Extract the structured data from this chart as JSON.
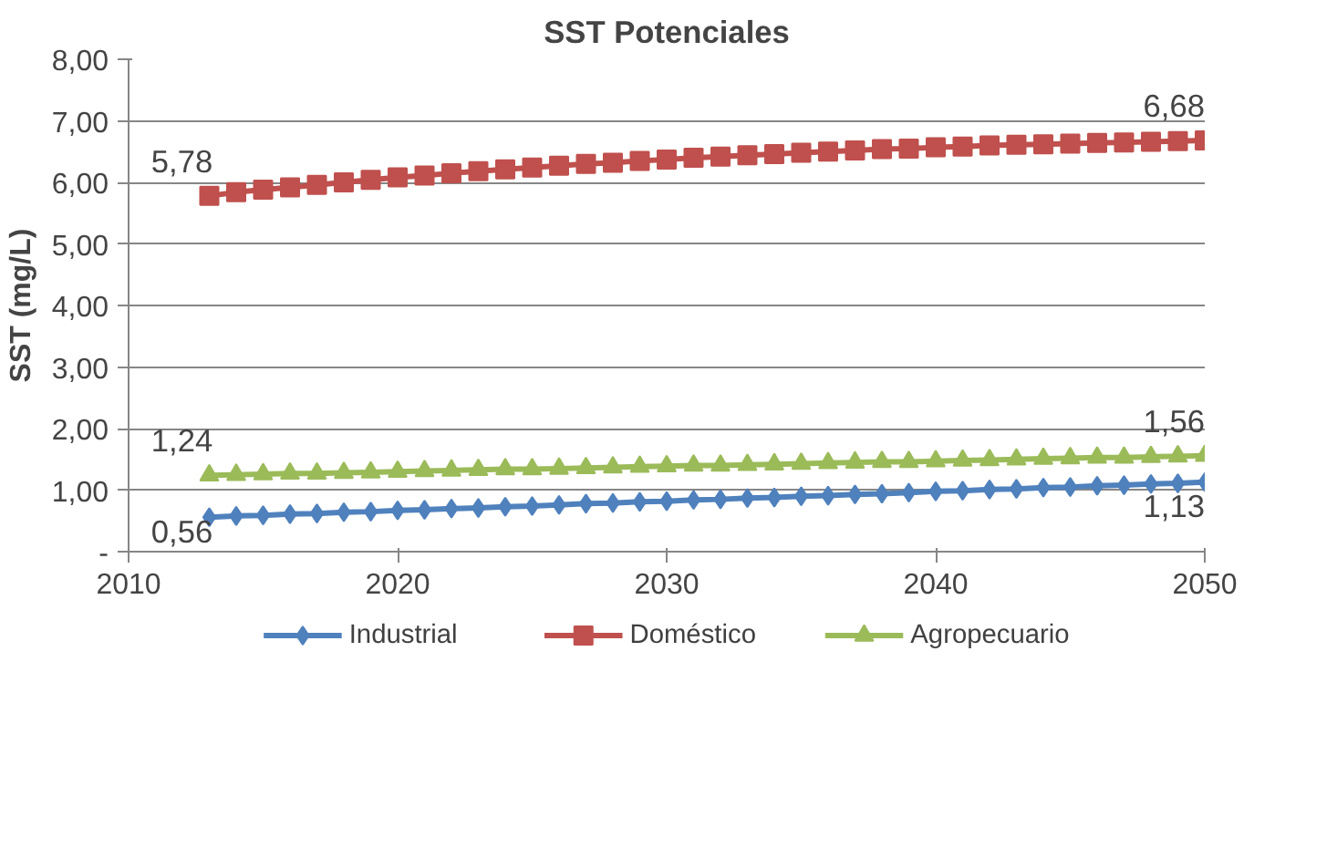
{
  "chart_data": {
    "type": "line",
    "title": "SST Potenciales",
    "ylabel": "SST (mg/L)",
    "x": [
      2013,
      2014,
      2015,
      2016,
      2017,
      2018,
      2019,
      2020,
      2021,
      2022,
      2023,
      2024,
      2025,
      2026,
      2027,
      2028,
      2029,
      2030,
      2031,
      2032,
      2033,
      2034,
      2035,
      2036,
      2037,
      2038,
      2039,
      2040,
      2041,
      2042,
      2043,
      2044,
      2045,
      2046,
      2047,
      2048,
      2049,
      2050
    ],
    "series": [
      {
        "name": "Industrial",
        "color": "#4f81bd",
        "marker": "diamond",
        "values": [
          0.56,
          0.58,
          0.59,
          0.61,
          0.62,
          0.64,
          0.65,
          0.67,
          0.68,
          0.7,
          0.71,
          0.73,
          0.74,
          0.76,
          0.78,
          0.79,
          0.81,
          0.82,
          0.84,
          0.85,
          0.87,
          0.88,
          0.9,
          0.91,
          0.93,
          0.94,
          0.96,
          0.98,
          0.99,
          1.01,
          1.02,
          1.04,
          1.05,
          1.07,
          1.08,
          1.1,
          1.11,
          1.13
        ],
        "value_labels": [
          "0,56",
          null,
          null,
          null,
          null,
          null,
          null,
          null,
          null,
          null,
          null,
          null,
          null,
          null,
          null,
          null,
          null,
          null,
          null,
          null,
          null,
          null,
          null,
          null,
          null,
          null,
          null,
          null,
          null,
          null,
          null,
          null,
          null,
          null,
          null,
          null,
          null,
          "1,13"
        ]
      },
      {
        "name": "Doméstico",
        "color": "#c0504d",
        "marker": "square",
        "values": [
          5.78,
          5.84,
          5.88,
          5.92,
          5.96,
          6.0,
          6.04,
          6.08,
          6.11,
          6.15,
          6.18,
          6.21,
          6.24,
          6.27,
          6.3,
          6.32,
          6.35,
          6.37,
          6.4,
          6.42,
          6.44,
          6.46,
          6.48,
          6.5,
          6.52,
          6.54,
          6.55,
          6.57,
          6.58,
          6.6,
          6.61,
          6.62,
          6.63,
          6.64,
          6.65,
          6.66,
          6.67,
          6.68
        ],
        "value_labels": [
          "5,78",
          null,
          null,
          null,
          null,
          null,
          null,
          null,
          null,
          null,
          null,
          null,
          null,
          null,
          null,
          null,
          null,
          null,
          null,
          null,
          null,
          null,
          null,
          null,
          null,
          null,
          null,
          null,
          null,
          null,
          null,
          null,
          null,
          null,
          null,
          null,
          null,
          "6,68"
        ]
      },
      {
        "name": "Agropecuario",
        "color": "#9bbb59",
        "marker": "triangle",
        "values": [
          1.24,
          1.25,
          1.26,
          1.27,
          1.27,
          1.28,
          1.29,
          1.3,
          1.31,
          1.32,
          1.33,
          1.34,
          1.34,
          1.35,
          1.36,
          1.37,
          1.38,
          1.39,
          1.4,
          1.4,
          1.41,
          1.42,
          1.43,
          1.44,
          1.45,
          1.46,
          1.46,
          1.47,
          1.48,
          1.49,
          1.5,
          1.51,
          1.52,
          1.53,
          1.53,
          1.54,
          1.55,
          1.56
        ],
        "value_labels": [
          "1,24",
          null,
          null,
          null,
          null,
          null,
          null,
          null,
          null,
          null,
          null,
          null,
          null,
          null,
          null,
          null,
          null,
          null,
          null,
          null,
          null,
          null,
          null,
          null,
          null,
          null,
          null,
          null,
          null,
          null,
          null,
          null,
          null,
          null,
          null,
          null,
          null,
          "1,56"
        ]
      }
    ],
    "xlim": [
      2010,
      2050
    ],
    "xticks": [
      2010,
      2020,
      2030,
      2040,
      2050
    ],
    "ylim": [
      0,
      8
    ],
    "yticks": [
      {
        "value": 0,
        "label": "-"
      },
      {
        "value": 1,
        "label": "1,00"
      },
      {
        "value": 2,
        "label": "2,00"
      },
      {
        "value": 3,
        "label": "3,00"
      },
      {
        "value": 4,
        "label": "4,00"
      },
      {
        "value": 5,
        "label": "5,00"
      },
      {
        "value": 6,
        "label": "6,00"
      },
      {
        "value": 7,
        "label": "7,00"
      },
      {
        "value": 8,
        "label": "8,00"
      }
    ],
    "grid": "y",
    "legend": "bottom",
    "line_style": "solid"
  }
}
